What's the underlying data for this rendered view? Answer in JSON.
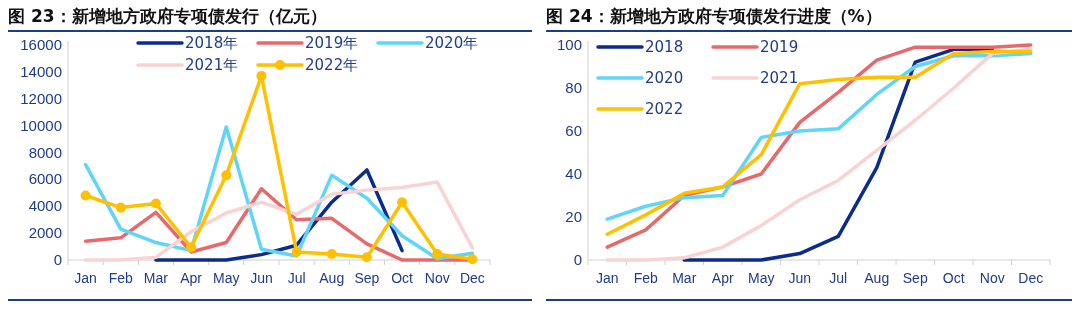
{
  "chart_data": [
    {
      "type": "line",
      "title": "图 23：新增地方政府专项债发行（亿元）",
      "categories": [
        "Jan",
        "Feb",
        "Mar",
        "Apr",
        "May",
        "Jun",
        "Jul",
        "Aug",
        "Sep",
        "Oct",
        "Nov",
        "Dec"
      ],
      "ylim": [
        0,
        16000
      ],
      "yticks": [
        0,
        2000,
        4000,
        6000,
        8000,
        10000,
        12000,
        14000,
        16000
      ],
      "legend": "top",
      "grid": false,
      "series": [
        {
          "name": "2018年",
          "color": "#0b2c8c",
          "values": [
            null,
            null,
            0,
            0,
            0,
            400,
            1100,
            4300,
            6700,
            700,
            null,
            null
          ]
        },
        {
          "name": "2019年",
          "color": "#e8696b",
          "values": [
            1400,
            1650,
            3550,
            600,
            1300,
            5300,
            3000,
            3100,
            1200,
            0,
            0,
            0
          ]
        },
        {
          "name": "2020年",
          "color": "#5fd5f9",
          "values": [
            7100,
            2300,
            1300,
            700,
            9900,
            800,
            300,
            6300,
            4600,
            1800,
            100,
            500
          ]
        },
        {
          "name": "2021年",
          "color": "#f9d3d3",
          "values": [
            0,
            0,
            200,
            2100,
            3500,
            4300,
            3400,
            4900,
            5200,
            5400,
            5800,
            900
          ]
        },
        {
          "name": "2022年",
          "color": "#ffc000",
          "marker": "circle",
          "values": [
            4800,
            3900,
            4200,
            950,
            6300,
            13700,
            600,
            450,
            200,
            4300,
            450,
            50
          ]
        }
      ]
    },
    {
      "type": "line",
      "title": "图 24：新增地方政府专项债发行进度（%）",
      "categories": [
        "Jan",
        "Feb",
        "Mar",
        "Apr",
        "May",
        "Jun",
        "Jul",
        "Aug",
        "Sep",
        "Oct",
        "Nov",
        "Dec"
      ],
      "ylim": [
        0,
        100
      ],
      "yticks": [
        0,
        20,
        40,
        60,
        80,
        100
      ],
      "legend": "top left",
      "grid": false,
      "series": [
        {
          "name": "2018",
          "color": "#0b2c8c",
          "values": [
            null,
            null,
            0,
            0,
            0,
            3,
            11,
            43,
            92,
            98,
            98,
            null
          ]
        },
        {
          "name": "2019",
          "color": "#e8696b",
          "values": [
            6,
            14,
            30,
            34,
            40,
            64,
            78,
            93,
            99,
            99,
            99,
            100
          ]
        },
        {
          "name": "2020",
          "color": "#5fd5f9",
          "values": [
            19,
            25,
            29,
            30,
            57,
            60,
            61,
            77,
            90,
            95,
            95,
            96
          ]
        },
        {
          "name": "2021",
          "color": "#f9d3d3",
          "values": [
            0,
            0,
            1,
            6,
            16,
            28,
            37,
            51,
            65,
            80,
            96,
            98
          ]
        },
        {
          "name": "2022",
          "color": "#ffc000",
          "values": [
            12,
            21,
            31,
            34,
            49,
            82,
            84,
            85,
            85,
            96,
            97,
            97
          ]
        }
      ]
    }
  ]
}
